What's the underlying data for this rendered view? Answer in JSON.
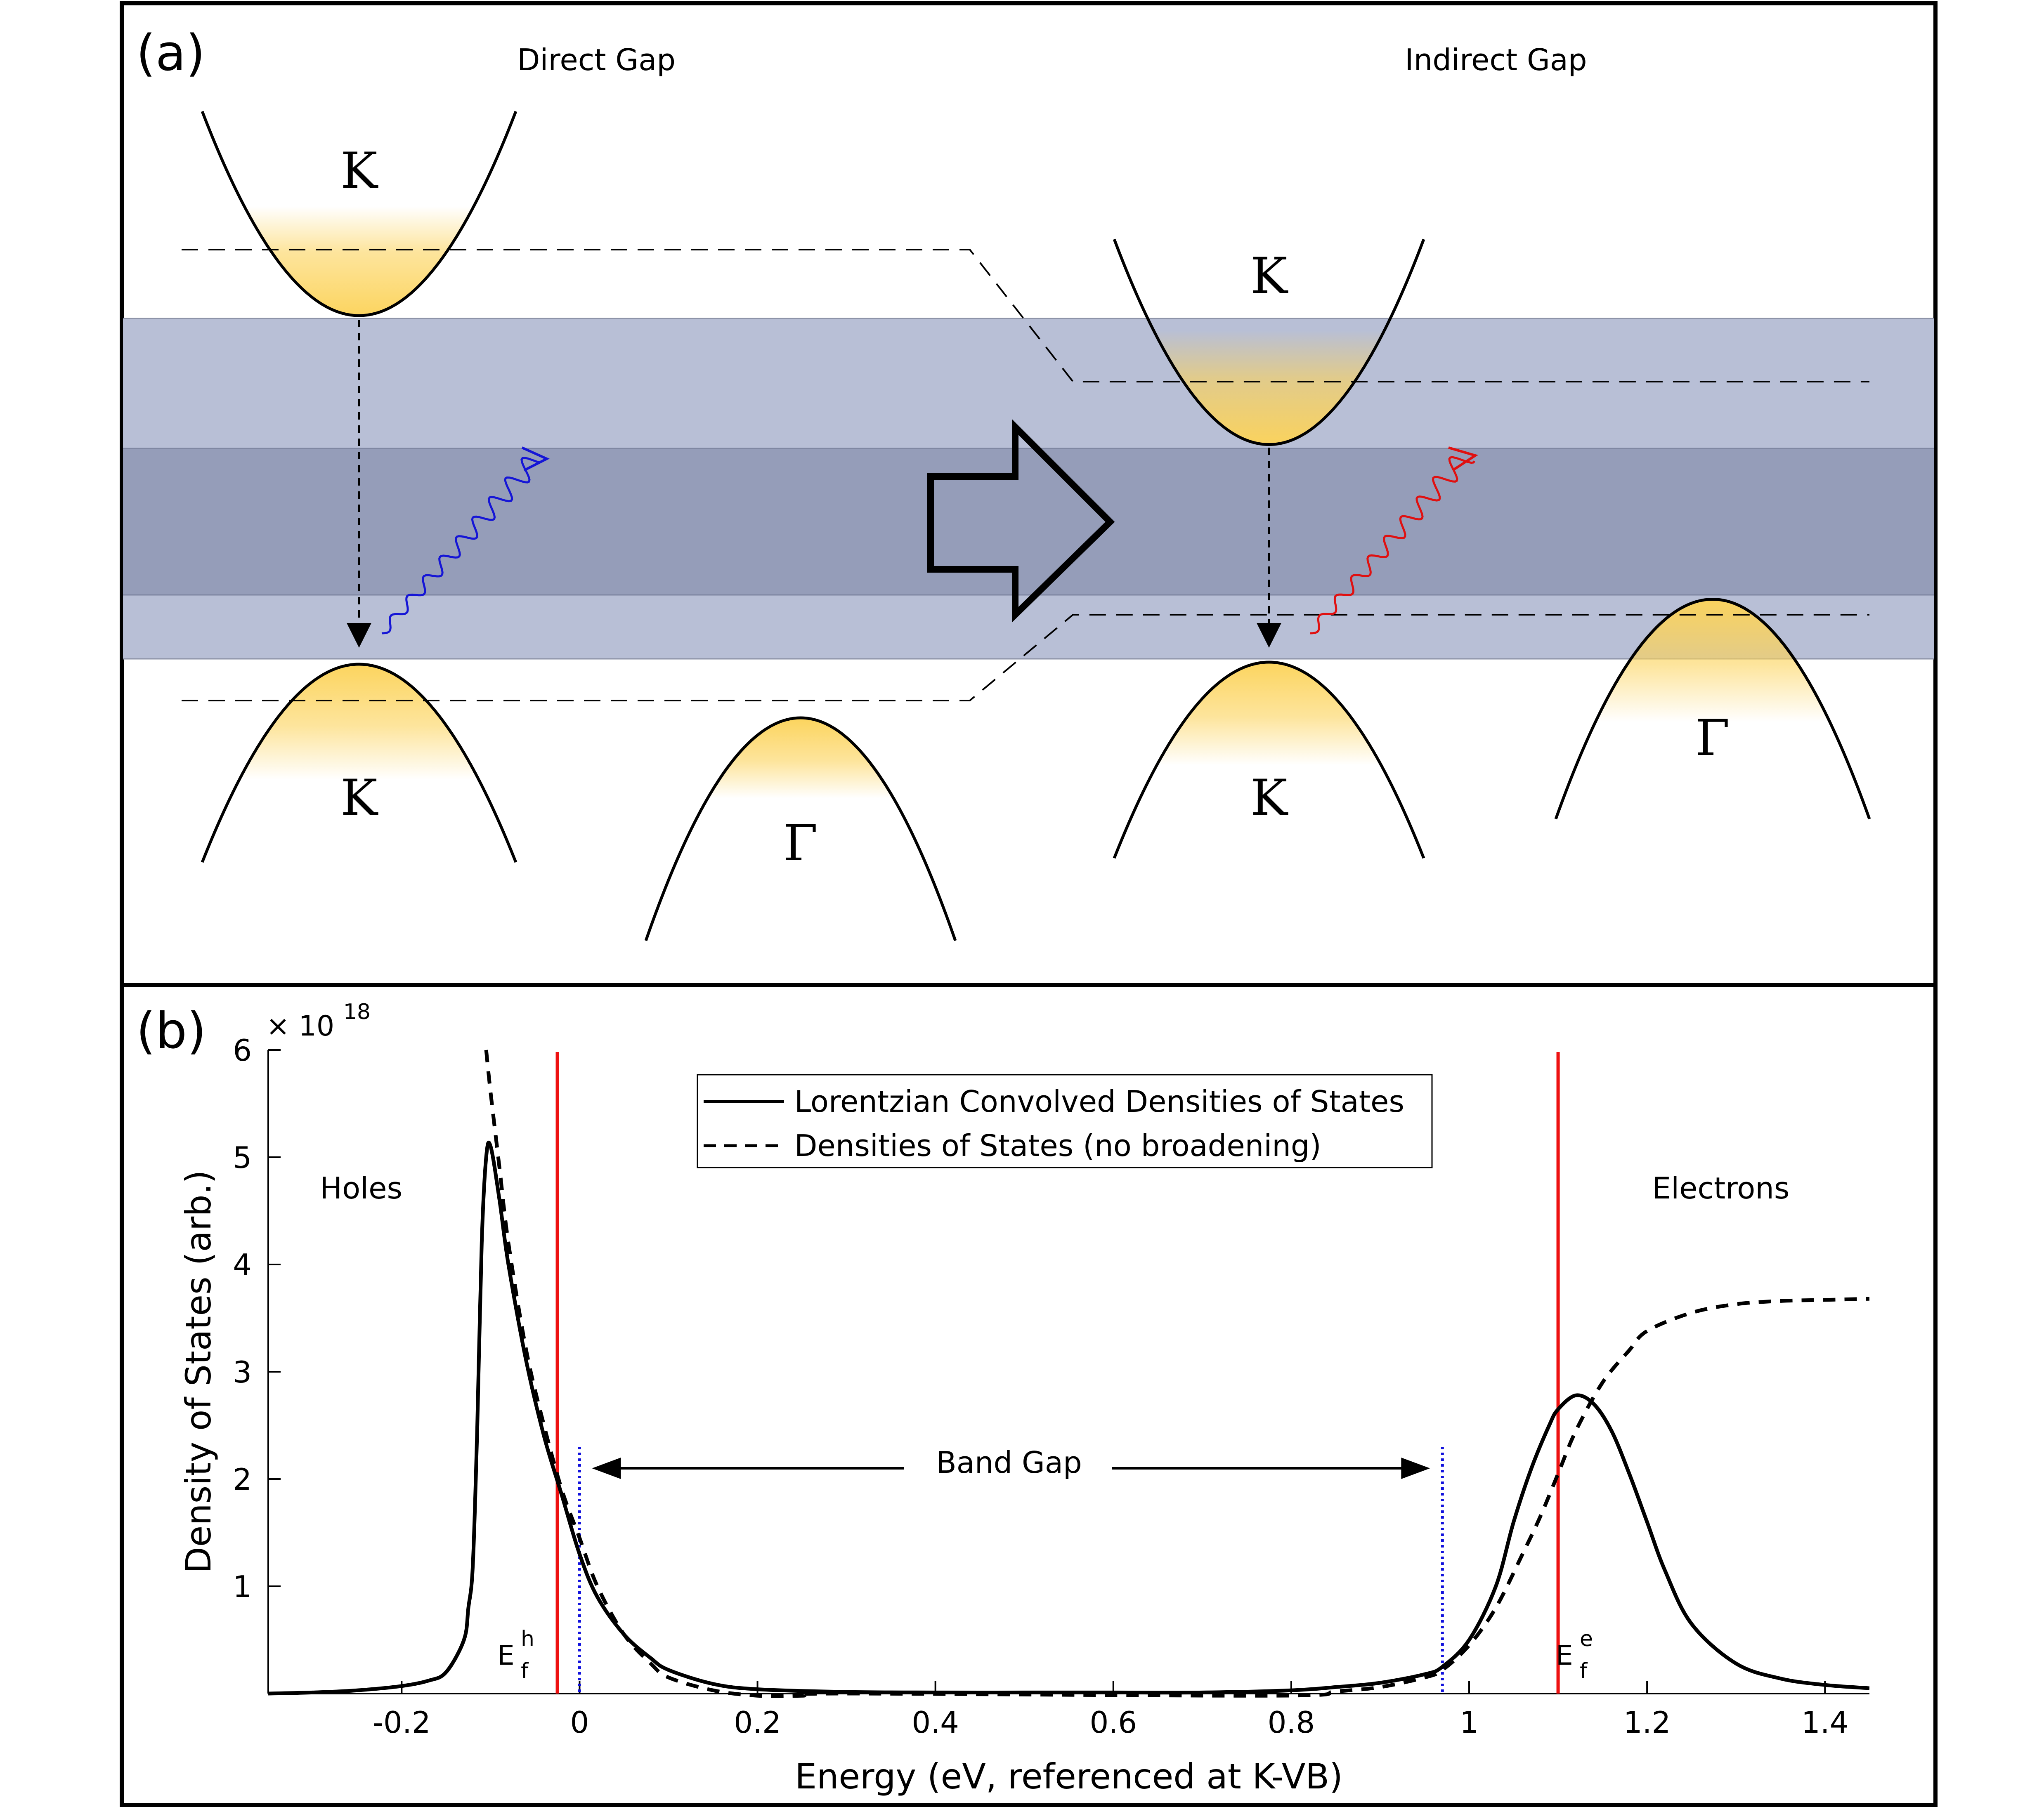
{
  "panel_a": {
    "label": "(a)",
    "direct_gap_title": "Direct Gap",
    "indirect_gap_title": "Indirect Gap",
    "direct_cb_label": "K",
    "direct_vb_k_label": "K",
    "direct_vb_gamma_label": "Γ",
    "indirect_cb_label": "K",
    "indirect_vb_k_label": "K",
    "indirect_vb_gamma_label": "Γ",
    "direct_photon_color": "#1515d6",
    "indirect_photon_color": "#e01010",
    "band_shade_light": "#b8bfd6",
    "band_shade_dark": "#959db9",
    "carrier_fill": "#fcd35a"
  },
  "panel_b": {
    "label": "(b)",
    "exponent_label": "× 10",
    "exponent_power": "18",
    "holes_label": "Holes",
    "electrons_label": "Electrons",
    "band_gap_label": "Band Gap",
    "fermi_hole_main": "E",
    "fermi_hole_sup": "h",
    "fermi_hole_sub": "f",
    "fermi_electron_main": "E",
    "fermi_electron_sup": "e",
    "fermi_electron_sub": "f"
  },
  "chart_data": {
    "type": "line",
    "xlabel": "Energy (eV, referenced at K-VB)",
    "ylabel": "Density of States (arb.)",
    "xlim": [
      -0.35,
      1.45
    ],
    "ylim": [
      0,
      6
    ],
    "y_multiplier": "1e18",
    "xticks": [
      -0.2,
      0,
      0.2,
      0.4,
      0.6,
      0.8,
      1,
      1.2,
      1.4
    ],
    "xtick_labels": [
      "-0.2",
      "0",
      "0.2",
      "0.4",
      "0.6",
      "0.8",
      "1",
      "1.2",
      "1.4"
    ],
    "yticks": [
      1,
      2,
      3,
      4,
      5,
      6
    ],
    "ytick_labels": [
      "1",
      "2",
      "3",
      "4",
      "5",
      "6"
    ],
    "legend_position": "top-center",
    "series": [
      {
        "name": "Lorentzian Convolved Densities of States",
        "style": "solid",
        "color": "#000000",
        "x": [
          -0.35,
          -0.3,
          -0.25,
          -0.2,
          -0.17,
          -0.15,
          -0.13,
          -0.125,
          -0.12,
          -0.115,
          -0.11,
          -0.105,
          -0.1,
          -0.09,
          -0.08,
          -0.06,
          -0.04,
          -0.02,
          0,
          0.02,
          0.05,
          0.08,
          0.1,
          0.15,
          0.2,
          0.3,
          0.4,
          0.5,
          0.6,
          0.7,
          0.8,
          0.85,
          0.9,
          0.95,
          0.97,
          1,
          1.03,
          1.05,
          1.07,
          1.09,
          1.1,
          1.12,
          1.14,
          1.16,
          1.18,
          1.2,
          1.22,
          1.25,
          1.3,
          1.35,
          1.4,
          1.45
        ],
        "y": [
          0,
          0.01,
          0.03,
          0.07,
          0.12,
          0.2,
          0.5,
          0.8,
          1.2,
          2.5,
          4.2,
          5.0,
          5.1,
          4.6,
          4.0,
          3.1,
          2.4,
          1.85,
          1.3,
          0.9,
          0.55,
          0.33,
          0.22,
          0.09,
          0.04,
          0.015,
          0.01,
          0.01,
          0.01,
          0.01,
          0.03,
          0.06,
          0.1,
          0.18,
          0.25,
          0.5,
          1.0,
          1.6,
          2.1,
          2.5,
          2.65,
          2.78,
          2.7,
          2.45,
          2.05,
          1.6,
          1.15,
          0.65,
          0.28,
          0.14,
          0.08,
          0.05
        ]
      },
      {
        "name": "Densities of States (no broadening)",
        "style": "dashed",
        "color": "#000000",
        "x": [
          -0.105,
          -0.1,
          -0.09,
          -0.08,
          -0.06,
          -0.04,
          -0.02,
          0,
          0.02,
          0.05,
          0.08,
          0.1,
          0.15,
          0.2,
          0.25,
          0.3,
          0.78,
          0.85,
          0.9,
          0.95,
          0.97,
          1,
          1.03,
          1.06,
          1.08,
          1.1,
          1.12,
          1.15,
          1.18,
          1.2,
          1.25,
          1.3,
          1.35,
          1.4,
          1.45
        ],
        "y": [
          6.0,
          5.6,
          4.9,
          4.2,
          3.2,
          2.5,
          1.9,
          1.45,
          1.0,
          0.55,
          0.28,
          0.15,
          0.03,
          -0.02,
          -0.02,
          0.0,
          -0.02,
          0.02,
          0.06,
          0.15,
          0.22,
          0.45,
          0.8,
          1.3,
          1.65,
          2.05,
          2.45,
          2.9,
          3.2,
          3.38,
          3.55,
          3.63,
          3.66,
          3.67,
          3.68
        ]
      }
    ],
    "vertical_lines": [
      {
        "x": -0.025,
        "color": "#ee1111",
        "style": "solid"
      },
      {
        "x": 1.1,
        "color": "#ee1111",
        "style": "solid"
      },
      {
        "x": 0.0,
        "color": "#1111dd",
        "style": "dotted"
      },
      {
        "x": 0.97,
        "color": "#1111dd",
        "style": "dotted"
      }
    ],
    "band_gap_arrow": {
      "x_start": 0.0,
      "x_end": 0.97,
      "y": 2.1
    }
  }
}
